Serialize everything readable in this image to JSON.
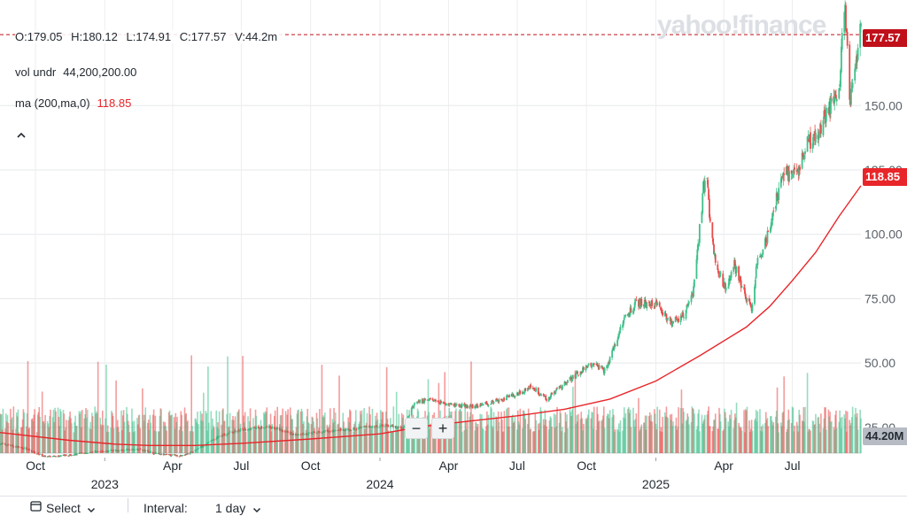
{
  "ohlc": {
    "open": "O:179.05",
    "high": "H:180.12",
    "low": "L:174.91",
    "close": "C:177.57",
    "volume": "V:44.2m"
  },
  "indicators": [
    {
      "label": "vol undr",
      "value": "44,200,200.00",
      "color": "#232a31"
    },
    {
      "label": "ma (200,ma,0)",
      "value": "118.85",
      "color": "#e8262a"
    }
  ],
  "collapse_icon": "chevron-up-icon",
  "watermark": "yahoo!finance",
  "price_tags": {
    "last": "177.57",
    "ma": "118.85",
    "volume": "44.20M"
  },
  "zoom": {
    "minus": "−",
    "plus": "+"
  },
  "footer": {
    "select_label": "Select",
    "interval_label": "Interval:",
    "interval_value": "1 day"
  },
  "colors": {
    "up": "#3fc08a",
    "down": "#e94b4b",
    "ma": "#e8262a",
    "tag_last": "#c0101a",
    "tag_ma": "#e8262a",
    "tag_vol": "#b7bcc4"
  },
  "chart_data": {
    "type": "candlestick",
    "x_tick_labels": [
      {
        "label": "Oct",
        "date": "2022-10-01"
      },
      {
        "label": "Apr",
        "date": "2023-04-01"
      },
      {
        "label": "Jul",
        "date": "2023-07-01"
      },
      {
        "label": "Oct",
        "date": "2023-10-01"
      },
      {
        "label": "Apr",
        "date": "2024-04-01"
      },
      {
        "label": "Jul",
        "date": "2024-07-01"
      },
      {
        "label": "Oct",
        "date": "2024-10-01"
      },
      {
        "label": "Apr",
        "date": "2025-04-01"
      },
      {
        "label": "Jul",
        "date": "2025-07-01"
      }
    ],
    "year_labels": [
      {
        "label": "2023",
        "date": "2023-01-01"
      },
      {
        "label": "2024",
        "date": "2024-01-01"
      },
      {
        "label": "2025",
        "date": "2025-01-01"
      }
    ],
    "x_range": [
      "2022-08-15",
      "2025-09-30"
    ],
    "y_range": [
      15,
      191
    ],
    "y_ticks": [
      25,
      50,
      75,
      100,
      125,
      150
    ],
    "y_tick_labels": [
      "25.00",
      "50.00",
      "75.00",
      "100.00",
      "125.00",
      "150.00"
    ],
    "last_close": 177.57,
    "ma_period": 200,
    "price_path": [
      [
        "2022-08-15",
        18.7
      ],
      [
        "2022-09-15",
        17.0
      ],
      [
        "2022-10-15",
        13.5
      ],
      [
        "2022-11-15",
        14.2
      ],
      [
        "2022-12-15",
        15.5
      ],
      [
        "2023-01-15",
        16.0
      ],
      [
        "2023-02-15",
        16.5
      ],
      [
        "2023-03-15",
        14.5
      ],
      [
        "2023-04-15",
        14.0
      ],
      [
        "2023-05-01",
        16.2
      ],
      [
        "2023-05-20",
        19.5
      ],
      [
        "2023-06-10",
        22.5
      ],
      [
        "2023-07-10",
        24.5
      ],
      [
        "2023-08-10",
        25.0
      ],
      [
        "2023-09-10",
        22.0
      ],
      [
        "2023-10-10",
        23.0
      ],
      [
        "2023-11-10",
        24.0
      ],
      [
        "2023-12-10",
        25.0
      ],
      [
        "2024-01-10",
        26.0
      ],
      [
        "2024-02-01",
        24.5
      ],
      [
        "2024-02-15",
        34.0
      ],
      [
        "2024-03-05",
        36.0
      ],
      [
        "2024-04-01",
        34.0
      ],
      [
        "2024-05-01",
        33.0
      ],
      [
        "2024-06-01",
        35.0
      ],
      [
        "2024-07-01",
        38.0
      ],
      [
        "2024-07-20",
        41.0
      ],
      [
        "2024-08-10",
        36.0
      ],
      [
        "2024-09-01",
        42.0
      ],
      [
        "2024-09-20",
        46.0
      ],
      [
        "2024-10-10",
        50.0
      ],
      [
        "2024-10-25",
        47.0
      ],
      [
        "2024-11-05",
        55.0
      ],
      [
        "2024-11-20",
        68.0
      ],
      [
        "2024-12-10",
        74.0
      ],
      [
        "2025-01-05",
        72.0
      ],
      [
        "2025-01-20",
        65.0
      ],
      [
        "2025-02-10",
        70.0
      ],
      [
        "2025-02-20",
        78.0
      ],
      [
        "2025-03-01",
        105.0
      ],
      [
        "2025-03-05",
        118.0
      ],
      [
        "2025-03-10",
        122.0
      ],
      [
        "2025-03-15",
        100.0
      ],
      [
        "2025-03-25",
        85.0
      ],
      [
        "2025-04-05",
        78.0
      ],
      [
        "2025-04-15",
        88.0
      ],
      [
        "2025-04-25",
        80.0
      ],
      [
        "2025-05-08",
        70.0
      ],
      [
        "2025-05-15",
        88.0
      ],
      [
        "2025-05-25",
        95.0
      ],
      [
        "2025-06-05",
        108.0
      ],
      [
        "2025-06-20",
        125.0
      ],
      [
        "2025-07-05",
        122.0
      ],
      [
        "2025-07-20",
        135.0
      ],
      [
        "2025-08-05",
        140.0
      ],
      [
        "2025-08-20",
        150.0
      ],
      [
        "2025-09-01",
        158.0
      ],
      [
        "2025-09-08",
        188.0
      ],
      [
        "2025-09-12",
        175.0
      ],
      [
        "2025-09-15",
        152.0
      ],
      [
        "2025-09-20",
        162.0
      ],
      [
        "2025-09-24",
        168.0
      ],
      [
        "2025-09-28",
        182.0
      ],
      [
        "2025-09-30",
        177.57
      ]
    ],
    "ma_path": [
      [
        "2022-08-15",
        23.0
      ],
      [
        "2022-11-15",
        20.0
      ],
      [
        "2023-01-15",
        18.5
      ],
      [
        "2023-03-01",
        18.0
      ],
      [
        "2023-05-01",
        18.0
      ],
      [
        "2023-07-01",
        18.8
      ],
      [
        "2023-10-01",
        20.5
      ],
      [
        "2024-01-01",
        22.5
      ],
      [
        "2024-03-01",
        25.5
      ],
      [
        "2024-05-01",
        27.5
      ],
      [
        "2024-07-01",
        29.5
      ],
      [
        "2024-09-01",
        32.0
      ],
      [
        "2024-11-01",
        36.0
      ],
      [
        "2025-01-01",
        43.0
      ],
      [
        "2025-03-01",
        53.0
      ],
      [
        "2025-05-01",
        64.0
      ],
      [
        "2025-06-01",
        72.0
      ],
      [
        "2025-07-01",
        82.0
      ],
      [
        "2025-08-01",
        93.0
      ],
      [
        "2025-09-01",
        107.0
      ],
      [
        "2025-09-30",
        118.85
      ]
    ],
    "volume_scale_max": 300
  }
}
